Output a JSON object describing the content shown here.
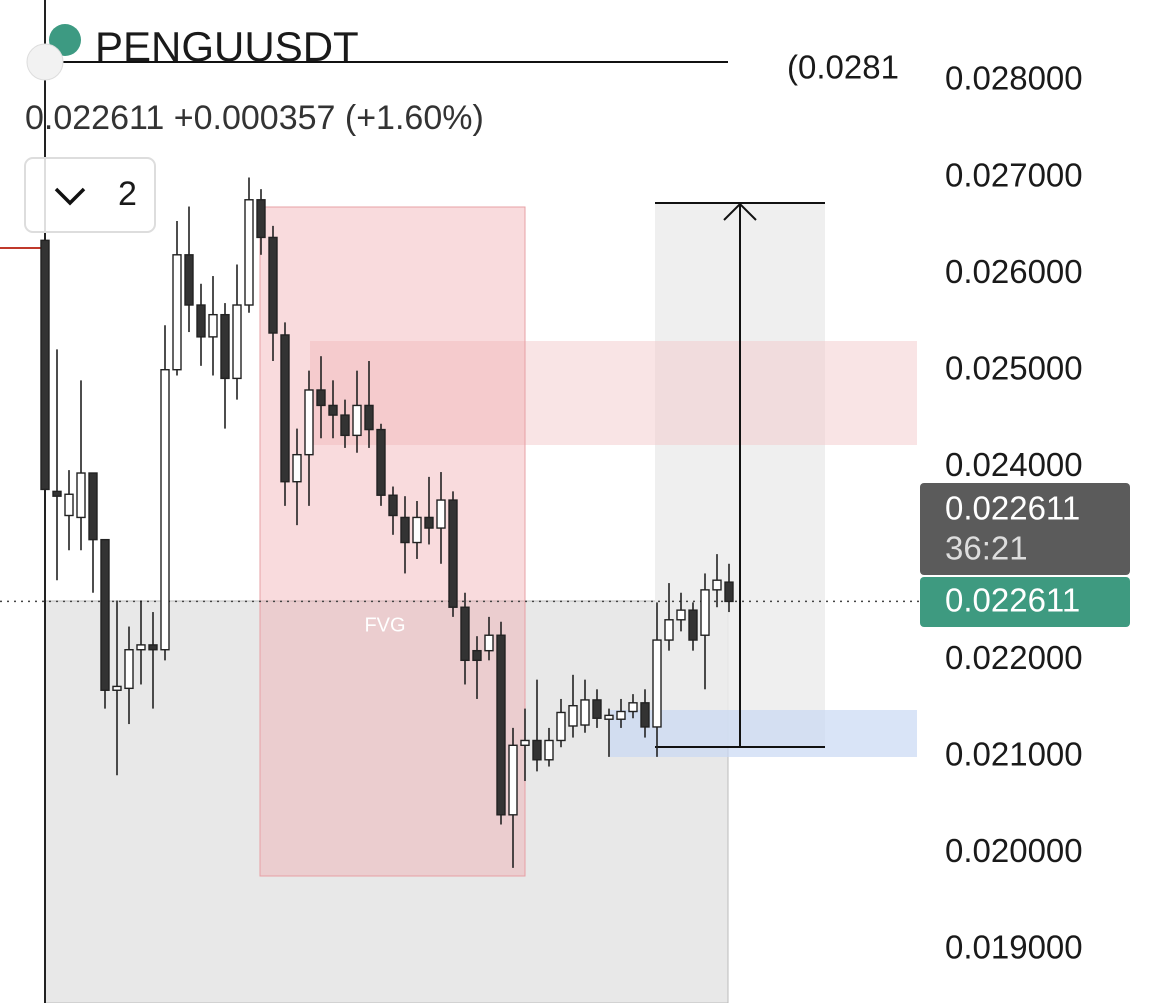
{
  "chart_data": {
    "type": "candlestick",
    "title": "PENGUUSDT",
    "last_price": "0.022611",
    "change": "+0.000357",
    "change_percent": "(+1.60%)",
    "interval": "2",
    "annotation": "(0.0281",
    "zone_label": "FVG",
    "current_price": 0.022611,
    "countdown": "36:21",
    "up_color": "#ffffff",
    "down_color": "#333333",
    "wick_color": "#222222",
    "open": [
      0.02635,
      0.02375,
      0.0235,
      0.02348,
      0.02394,
      0.02325,
      0.02169,
      0.02171,
      0.02211,
      0.02216,
      0.02211,
      0.02501,
      0.0262,
      0.02568,
      0.02535,
      0.02558,
      0.02492,
      0.02568,
      0.02677,
      0.02638,
      0.02537,
      0.02385,
      0.02413,
      0.0248,
      0.02464,
      0.02454,
      0.02433,
      0.02464,
      0.02439,
      0.02371,
      0.02348,
      0.02322,
      0.02348,
      0.02337,
      0.02366,
      0.02255,
      0.0221,
      0.0221,
      0.02226,
      0.0204,
      0.02112,
      0.02117,
      0.02097,
      0.02117,
      0.02132,
      0.02133,
      0.02159,
      0.02139,
      0.02139,
      0.02147,
      0.02156,
      0.02131,
      0.02221,
      0.02242,
      0.02252,
      0.02226,
      0.02273,
      0.02281
    ],
    "high": [
      0.0288,
      0.02522,
      0.02397,
      0.0249,
      0.02394,
      0.02325,
      0.02262,
      0.02235,
      0.02262,
      0.0225,
      0.02547,
      0.02655,
      0.0267,
      0.0259,
      0.02598,
      0.0257,
      0.0261,
      0.027,
      0.02688,
      0.0265,
      0.0255,
      0.0244,
      0.025,
      0.02515,
      0.0249,
      0.0247,
      0.025,
      0.0251,
      0.02445,
      0.0238,
      0.0237,
      0.02365,
      0.0239,
      0.02395,
      0.02375,
      0.0227,
      0.02225,
      0.02245,
      0.0224,
      0.0213,
      0.0215,
      0.0218,
      0.0213,
      0.0216,
      0.02185,
      0.0218,
      0.0217,
      0.0215,
      0.0216,
      0.02165,
      0.0217,
      0.0226,
      0.0228,
      0.0227,
      0.0226,
      0.0229,
      0.0231,
      0.023
    ],
    "low": [
      0.02355,
      0.02283,
      0.02314,
      0.02314,
      0.0227,
      0.0215,
      0.02081,
      0.02134,
      0.02175,
      0.0215,
      0.022,
      0.02495,
      0.0254,
      0.02505,
      0.02495,
      0.0244,
      0.0247,
      0.0256,
      0.0262,
      0.0251,
      0.0236,
      0.0234,
      0.0236,
      0.0243,
      0.0243,
      0.0242,
      0.02415,
      0.0242,
      0.0236,
      0.0233,
      0.0229,
      0.02305,
      0.0232,
      0.023,
      0.02245,
      0.02175,
      0.0216,
      0.022,
      0.0203,
      0.01985,
      0.02075,
      0.02085,
      0.0209,
      0.0211,
      0.0212,
      0.02125,
      0.0213,
      0.021,
      0.0213,
      0.0214,
      0.0212,
      0.021,
      0.0221,
      0.0223,
      0.0221,
      0.0217,
      0.02255,
      0.0225
    ],
    "close": [
      0.02377,
      0.0237,
      0.02372,
      0.02394,
      0.02325,
      0.02169,
      0.02173,
      0.02211,
      0.02216,
      0.02211,
      0.02501,
      0.0262,
      0.02568,
      0.02535,
      0.02558,
      0.02492,
      0.02568,
      0.02677,
      0.02638,
      0.02539,
      0.02385,
      0.02413,
      0.0248,
      0.02464,
      0.02454,
      0.02433,
      0.02464,
      0.02439,
      0.02371,
      0.0235,
      0.02322,
      0.02348,
      0.02337,
      0.02366,
      0.02255,
      0.022,
      0.022,
      0.02226,
      0.0204,
      0.02112,
      0.02117,
      0.02097,
      0.02117,
      0.02146,
      0.02153,
      0.02159,
      0.0214,
      0.02143,
      0.02147,
      0.02156,
      0.02131,
      0.02221,
      0.02242,
      0.02252,
      0.02221,
      0.02273,
      0.02283,
      0.02261
    ],
    "ylim": [
      0.018451,
      0.028839
    ],
    "yticks": [
      {
        "value": 0.028,
        "label": "0.028000"
      },
      {
        "value": 0.027,
        "label": "0.027000"
      },
      {
        "value": 0.026,
        "label": "0.026000"
      },
      {
        "value": 0.025,
        "label": "0.025000"
      },
      {
        "value": 0.024,
        "label": "0.024000"
      },
      {
        "value": 0.022,
        "label": "0.022000"
      },
      {
        "value": 0.021,
        "label": "0.021000"
      },
      {
        "value": 0.02,
        "label": "0.020000"
      },
      {
        "value": 0.019,
        "label": "0.019000"
      }
    ]
  }
}
